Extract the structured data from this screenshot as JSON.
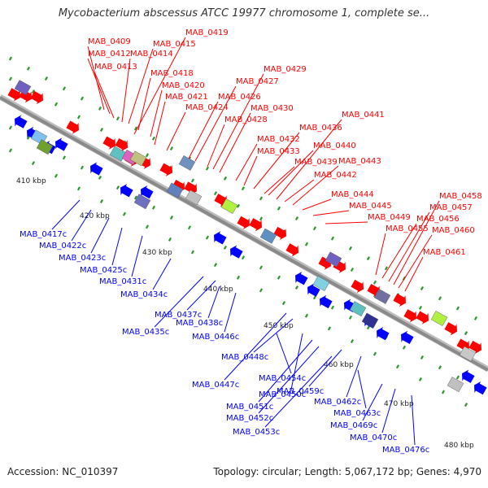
{
  "title": "Mycobacterium abscessus ATCC 19977 chromosome 1, complete se...",
  "footer": {
    "accession": "Accession: NC_010397",
    "summary": "Topology: circular; Length: 5,067,172 bp; Genes: 4,970"
  },
  "colors": {
    "forward": "#ff0000",
    "reverse": "#0000ff",
    "backbone": "#8a8a8a",
    "tick": "#2a9a2a"
  },
  "ticks": [
    "410 kbp",
    "420 kbp",
    "430 kbp",
    "440 kbp",
    "450 kbp",
    "460 kbp",
    "470 kbp",
    "480 kbp"
  ],
  "forward_genes": [
    "MAB_0409",
    "MAB_0412",
    "MAB_0413",
    "MAB_0414",
    "MAB_0415",
    "MAB_0418",
    "MAB_0419",
    "MAB_0420",
    "MAB_0421",
    "MAB_0424",
    "MAB_0426",
    "MAB_0427",
    "MAB_0428",
    "MAB_0429",
    "MAB_0430",
    "MAB_0432",
    "MAB_0433",
    "MAB_0436",
    "MAB_0439",
    "MAB_0440",
    "MAB_0441",
    "MAB_0442",
    "MAB_0443",
    "MAB_0444",
    "MAB_0445",
    "MAB_0449",
    "MAB_0455",
    "MAB_0456",
    "MAB_0457",
    "MAB_0458",
    "MAB_0460",
    "MAB_0461"
  ],
  "reverse_genes": [
    "MAB_0417c",
    "MAB_0422c",
    "MAB_0423c",
    "MAB_0425c",
    "MAB_0431c",
    "MAB_0434c",
    "MAB_0435c",
    "MAB_0437c",
    "MAB_0438c",
    "MAB_0446c",
    "MAB_0447c",
    "MAB_0448c",
    "MAB_0450c",
    "MAB_0451c",
    "MAB_0452c",
    "MAB_0453c",
    "MAB_0454c",
    "MAB_0459c",
    "MAB_0462c",
    "MAB_0463c",
    "MAB_0469c",
    "MAB_0470c",
    "MAB_0476c"
  ]
}
